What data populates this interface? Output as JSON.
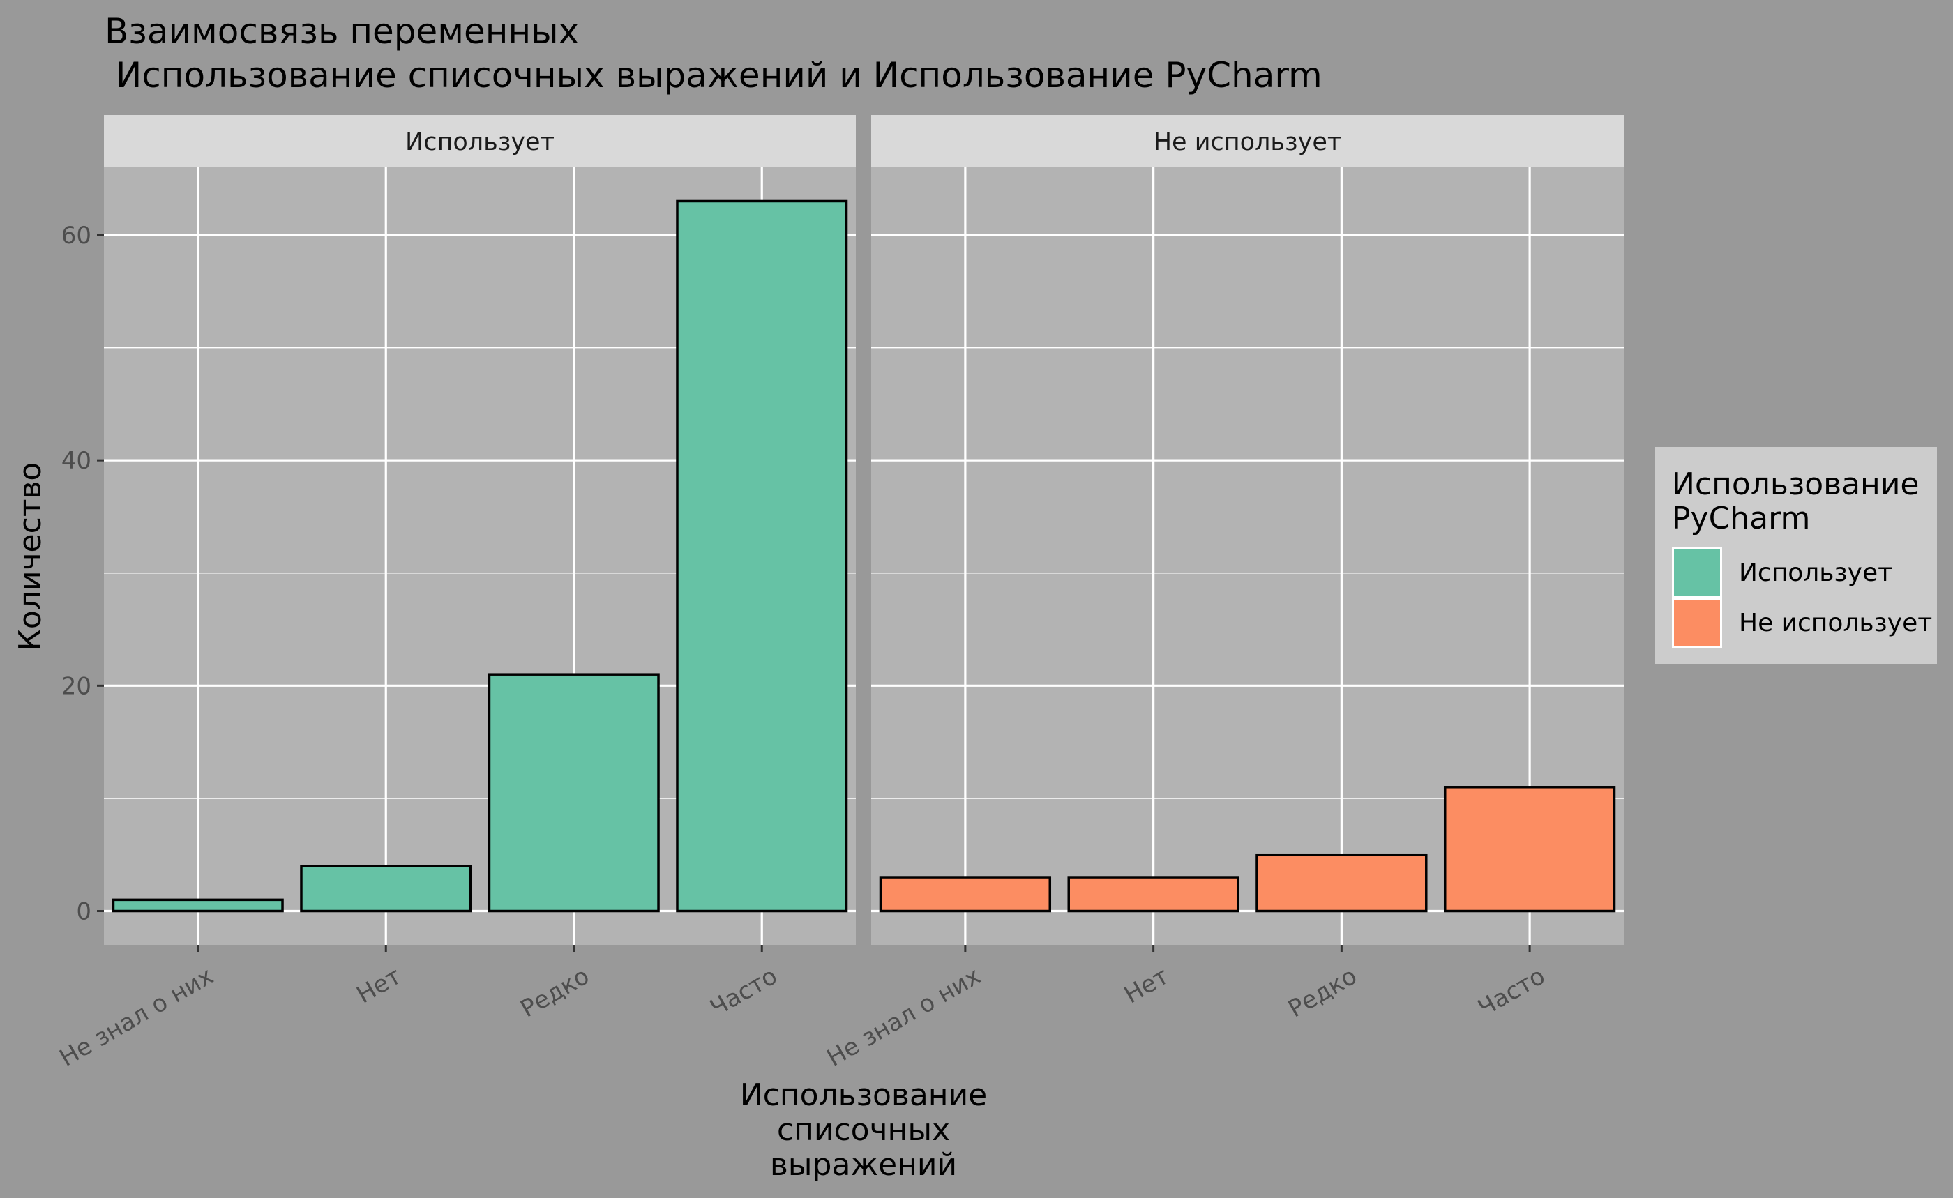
{
  "chart_data": {
    "type": "bar",
    "title_lines": [
      "Взаимосвязь переменных",
      " Использование списочных выражений и Использование PyCharm"
    ],
    "xlabel_lines": [
      "Использование",
      "списочных",
      "выражений"
    ],
    "ylabel": "Количество",
    "categories": [
      "Не знал о них",
      "Нет",
      "Редко",
      "Часто"
    ],
    "ylim": [
      -3,
      66
    ],
    "yticks": [
      0,
      20,
      40,
      60
    ],
    "ytick_labels": [
      "0",
      "20",
      "40",
      "60"
    ],
    "grid": true,
    "panels": [
      {
        "label": "Использует",
        "color": "#66C2A5",
        "values": [
          1,
          4,
          21,
          63
        ]
      },
      {
        "label": "Не использует",
        "color": "#FC8D62",
        "values": [
          3,
          3,
          5,
          11
        ]
      }
    ],
    "legend": {
      "title_lines": [
        "Использование",
        "PyCharm"
      ],
      "position": "right",
      "items": [
        {
          "label": "Использует",
          "color": "#66C2A5"
        },
        {
          "label": "Не использует",
          "color": "#FC8D62"
        }
      ]
    },
    "colors": {
      "background": "#999999",
      "panel": "#B3B3B3",
      "strip": "#D9D9D9",
      "grid": "#FFFFFF",
      "legend_box": "#CCCCCC"
    }
  }
}
